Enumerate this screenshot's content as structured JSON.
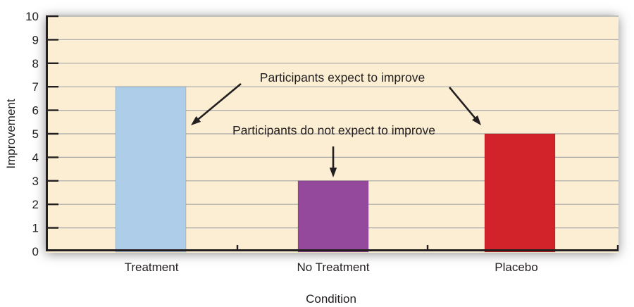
{
  "chart_data": {
    "type": "bar",
    "categories": [
      "Treatment",
      "No Treatment",
      "Placebo"
    ],
    "values": [
      7,
      3,
      5
    ],
    "bar_colors": [
      "#aecde8",
      "#94499c",
      "#d2232a"
    ],
    "xlabel": "Condition",
    "ylabel": "Improvement",
    "ylim": [
      0,
      10
    ],
    "ytick_interval": 1,
    "grid": "horizontal gridlines at each integer",
    "legend": "none",
    "plot_background": "#fbeed3",
    "gridline_color": "#a8a8a8",
    "axis_color": "#231f20",
    "annotations": [
      {
        "text": "Participants expect to improve",
        "points_to": [
          "Treatment",
          "Placebo"
        ]
      },
      {
        "text": "Participants do not expect to improve",
        "points_to": [
          "No Treatment"
        ]
      }
    ]
  }
}
